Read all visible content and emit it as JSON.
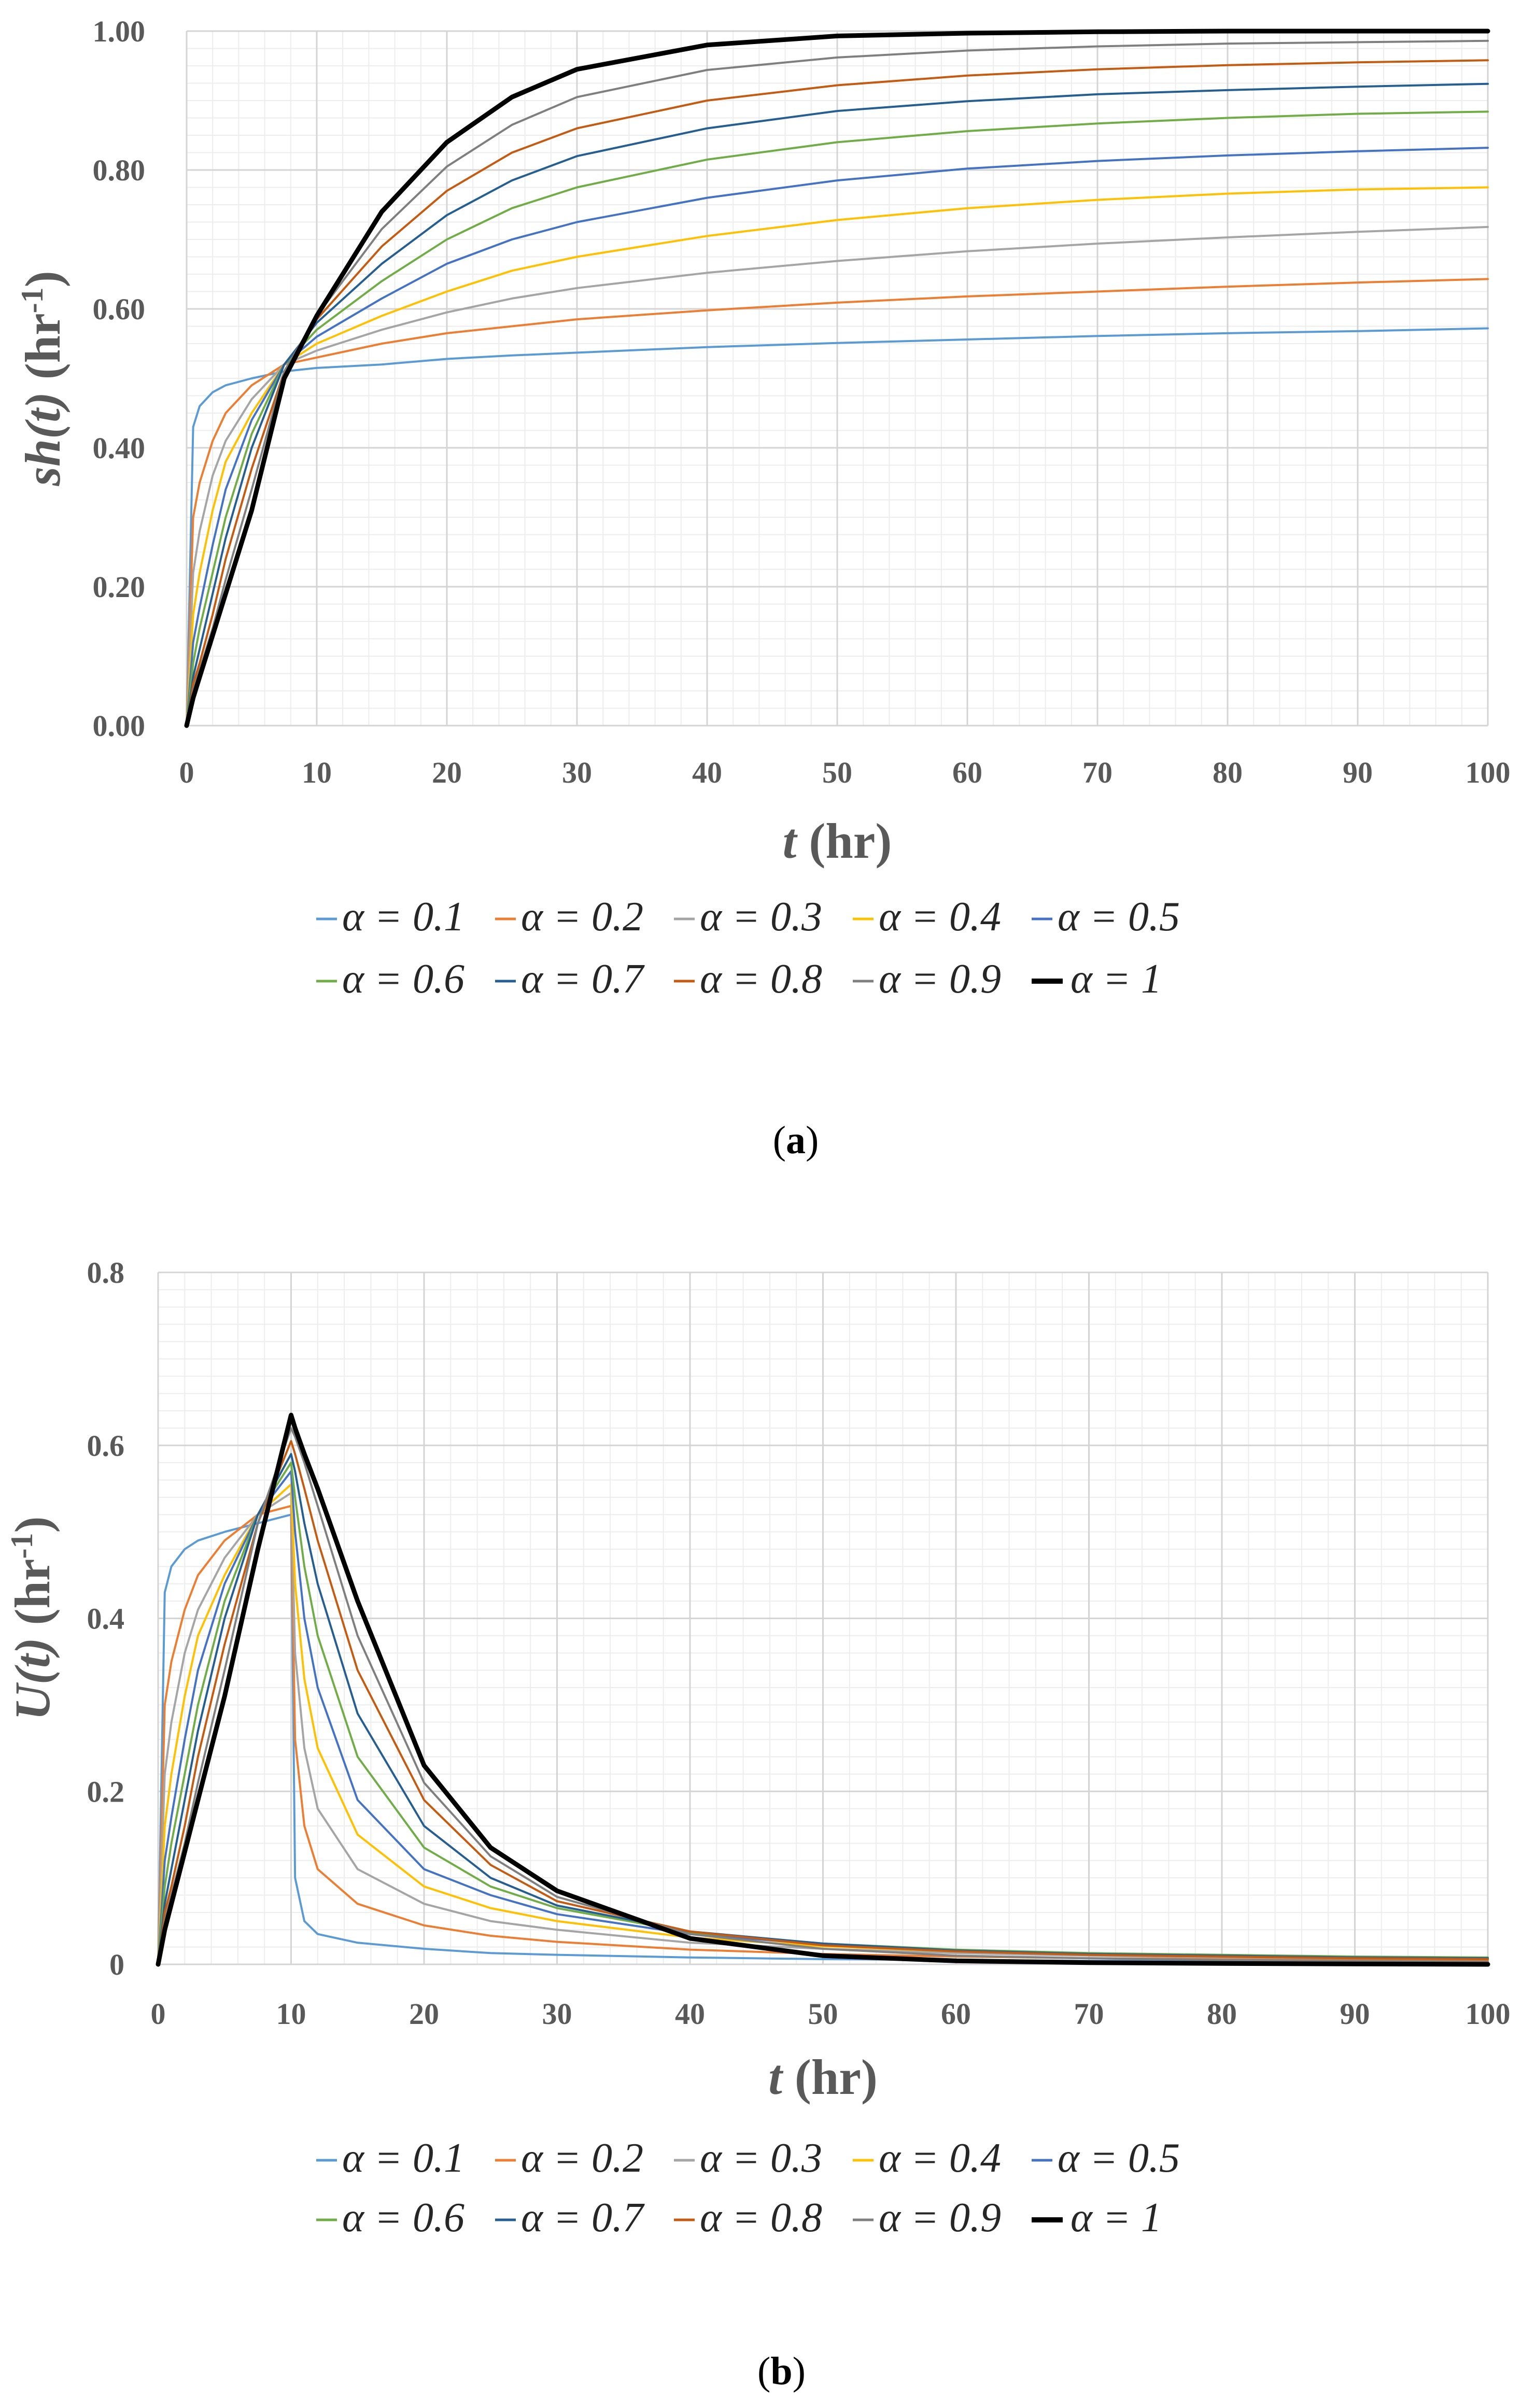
{
  "chart_data": [
    {
      "type": "line",
      "panel_label": "a",
      "xlabel_var": "t",
      "xlabel_unit": " (hr)",
      "ylabel_var": "sh(t)",
      "ylabel_unit": " (hr",
      "ylabel_sup": "-1",
      "ylabel_close": ")",
      "xlim": [
        0,
        100
      ],
      "ylim": [
        0,
        1
      ],
      "x_ticks": [
        0,
        10,
        20,
        30,
        40,
        50,
        60,
        70,
        80,
        90,
        100
      ],
      "y_ticks": [
        0,
        0.2,
        0.4,
        0.6,
        0.8,
        1.0
      ],
      "y_tick_labels": [
        "0.00",
        "0.20",
        "0.40",
        "0.60",
        "0.80",
        "1.00"
      ],
      "grid": true,
      "legend_position": "bottom",
      "x": [
        0,
        0.5,
        1,
        2,
        3,
        5,
        7.5,
        10,
        15,
        20,
        25,
        30,
        40,
        50,
        60,
        70,
        80,
        90,
        100
      ],
      "series": [
        {
          "name": "α = 0.1",
          "color": "#5B9BD5",
          "width": 4,
          "values": [
            0,
            0.43,
            0.46,
            0.48,
            0.49,
            0.5,
            0.51,
            0.515,
            0.52,
            0.528,
            0.533,
            0.537,
            0.545,
            0.551,
            0.556,
            0.561,
            0.565,
            0.568,
            0.572
          ]
        },
        {
          "name": "α = 0.2",
          "color": "#ED7D31",
          "width": 4,
          "values": [
            0,
            0.3,
            0.35,
            0.41,
            0.45,
            0.49,
            0.52,
            0.53,
            0.55,
            0.565,
            0.575,
            0.585,
            0.598,
            0.609,
            0.618,
            0.625,
            0.632,
            0.638,
            0.643
          ]
        },
        {
          "name": "α = 0.3",
          "color": "#A5A5A5",
          "width": 4,
          "values": [
            0,
            0.22,
            0.28,
            0.36,
            0.41,
            0.47,
            0.52,
            0.54,
            0.57,
            0.595,
            0.615,
            0.63,
            0.652,
            0.669,
            0.683,
            0.694,
            0.703,
            0.711,
            0.718
          ]
        },
        {
          "name": "α = 0.4",
          "color": "#FFC000",
          "width": 4,
          "values": [
            0,
            0.16,
            0.22,
            0.31,
            0.38,
            0.45,
            0.52,
            0.55,
            0.59,
            0.625,
            0.655,
            0.675,
            0.705,
            0.728,
            0.745,
            0.757,
            0.766,
            0.772,
            0.775
          ]
        },
        {
          "name": "α = 0.5",
          "color": "#4472C4",
          "width": 4,
          "values": [
            0,
            0.12,
            0.17,
            0.26,
            0.34,
            0.44,
            0.52,
            0.56,
            0.615,
            0.665,
            0.7,
            0.725,
            0.76,
            0.785,
            0.802,
            0.813,
            0.821,
            0.827,
            0.832
          ]
        },
        {
          "name": "α = 0.6",
          "color": "#70AD47",
          "width": 4,
          "values": [
            0,
            0.09,
            0.14,
            0.22,
            0.3,
            0.42,
            0.52,
            0.57,
            0.64,
            0.7,
            0.745,
            0.775,
            0.815,
            0.84,
            0.856,
            0.867,
            0.875,
            0.881,
            0.884
          ]
        },
        {
          "name": "α = 0.7",
          "color": "#255E91",
          "width": 4,
          "values": [
            0,
            0.07,
            0.11,
            0.19,
            0.27,
            0.4,
            0.52,
            0.58,
            0.665,
            0.735,
            0.785,
            0.82,
            0.86,
            0.885,
            0.899,
            0.909,
            0.915,
            0.92,
            0.924
          ]
        },
        {
          "name": "α = 0.8",
          "color": "#C55A11",
          "width": 4,
          "values": [
            0,
            0.06,
            0.09,
            0.16,
            0.24,
            0.37,
            0.51,
            0.585,
            0.69,
            0.77,
            0.825,
            0.86,
            0.9,
            0.922,
            0.936,
            0.945,
            0.951,
            0.955,
            0.958
          ]
        },
        {
          "name": "α = 0.9",
          "color": "#7F7F7F",
          "width": 4,
          "values": [
            0,
            0.05,
            0.08,
            0.14,
            0.21,
            0.34,
            0.51,
            0.59,
            0.715,
            0.805,
            0.865,
            0.905,
            0.944,
            0.962,
            0.972,
            0.978,
            0.982,
            0.984,
            0.986
          ]
        },
        {
          "name": "α = 1",
          "color": "#000000",
          "width": 9,
          "values": [
            0,
            0.04,
            0.07,
            0.13,
            0.19,
            0.31,
            0.5,
            0.59,
            0.74,
            0.84,
            0.905,
            0.945,
            0.98,
            0.993,
            0.997,
            0.999,
            1.0,
            1.0,
            1.0
          ]
        }
      ]
    },
    {
      "type": "line",
      "panel_label": "b",
      "xlabel_var": "t",
      "xlabel_unit": " (hr)",
      "ylabel_var": "U(t)",
      "ylabel_unit": " (hr",
      "ylabel_sup": "-1",
      "ylabel_close": ")",
      "xlim": [
        0,
        100
      ],
      "ylim": [
        0,
        0.8
      ],
      "x_ticks": [
        0,
        10,
        20,
        30,
        40,
        50,
        60,
        70,
        80,
        90,
        100
      ],
      "y_ticks": [
        0,
        0.2,
        0.4,
        0.6,
        0.8
      ],
      "y_tick_labels": [
        "0",
        "0.2",
        "0.4",
        "0.6",
        "0.8"
      ],
      "grid": true,
      "legend_position": "bottom",
      "x": [
        0,
        0.5,
        1,
        2,
        3,
        5,
        7.5,
        10,
        10.3,
        11,
        12,
        15,
        20,
        25,
        30,
        40,
        50,
        60,
        70,
        80,
        90,
        100
      ],
      "series": [
        {
          "name": "α = 0.1",
          "color": "#5B9BD5",
          "width": 4,
          "values": [
            0,
            0.43,
            0.46,
            0.48,
            0.49,
            0.5,
            0.51,
            0.52,
            0.1,
            0.05,
            0.035,
            0.025,
            0.018,
            0.013,
            0.011,
            0.008,
            0.006,
            0.005,
            0.004,
            0.004,
            0.003,
            0.003
          ]
        },
        {
          "name": "α = 0.2",
          "color": "#ED7D31",
          "width": 4,
          "values": [
            0,
            0.3,
            0.35,
            0.41,
            0.45,
            0.49,
            0.52,
            0.53,
            0.26,
            0.16,
            0.11,
            0.07,
            0.045,
            0.033,
            0.026,
            0.017,
            0.012,
            0.009,
            0.007,
            0.006,
            0.005,
            0.005
          ]
        },
        {
          "name": "α = 0.3",
          "color": "#A5A5A5",
          "width": 4,
          "values": [
            0,
            0.22,
            0.28,
            0.36,
            0.41,
            0.47,
            0.52,
            0.545,
            0.36,
            0.25,
            0.18,
            0.11,
            0.07,
            0.05,
            0.04,
            0.025,
            0.018,
            0.013,
            0.01,
            0.008,
            0.007,
            0.006
          ]
        },
        {
          "name": "α = 0.4",
          "color": "#FFC000",
          "width": 4,
          "values": [
            0,
            0.16,
            0.22,
            0.31,
            0.38,
            0.45,
            0.52,
            0.555,
            0.44,
            0.33,
            0.25,
            0.15,
            0.09,
            0.065,
            0.05,
            0.031,
            0.021,
            0.015,
            0.012,
            0.01,
            0.008,
            0.007
          ]
        },
        {
          "name": "α = 0.5",
          "color": "#4472C4",
          "width": 4,
          "values": [
            0,
            0.12,
            0.17,
            0.26,
            0.34,
            0.44,
            0.52,
            0.57,
            0.5,
            0.4,
            0.32,
            0.19,
            0.11,
            0.08,
            0.058,
            0.035,
            0.023,
            0.016,
            0.012,
            0.01,
            0.008,
            0.007
          ]
        },
        {
          "name": "α = 0.6",
          "color": "#70AD47",
          "width": 4,
          "values": [
            0,
            0.09,
            0.14,
            0.22,
            0.3,
            0.42,
            0.52,
            0.58,
            0.54,
            0.46,
            0.38,
            0.24,
            0.135,
            0.09,
            0.065,
            0.037,
            0.024,
            0.017,
            0.013,
            0.011,
            0.009,
            0.008
          ]
        },
        {
          "name": "α = 0.7",
          "color": "#255E91",
          "width": 4,
          "values": [
            0,
            0.07,
            0.11,
            0.19,
            0.27,
            0.4,
            0.52,
            0.59,
            0.57,
            0.51,
            0.44,
            0.29,
            0.16,
            0.1,
            0.068,
            0.038,
            0.024,
            0.016,
            0.012,
            0.01,
            0.008,
            0.007
          ]
        },
        {
          "name": "α = 0.8",
          "color": "#C55A11",
          "width": 4,
          "values": [
            0,
            0.06,
            0.09,
            0.16,
            0.24,
            0.37,
            0.51,
            0.605,
            0.59,
            0.55,
            0.49,
            0.34,
            0.19,
            0.115,
            0.073,
            0.038,
            0.022,
            0.015,
            0.011,
            0.009,
            0.007,
            0.006
          ]
        },
        {
          "name": "α = 0.9",
          "color": "#7F7F7F",
          "width": 4,
          "values": [
            0,
            0.05,
            0.08,
            0.14,
            0.21,
            0.34,
            0.51,
            0.62,
            0.61,
            0.58,
            0.53,
            0.38,
            0.21,
            0.125,
            0.078,
            0.035,
            0.018,
            0.01,
            0.007,
            0.005,
            0.004,
            0.003
          ]
        },
        {
          "name": "α = 1",
          "color": "#000000",
          "width": 9,
          "values": [
            0,
            0.04,
            0.07,
            0.13,
            0.19,
            0.31,
            0.48,
            0.635,
            0.62,
            0.59,
            0.55,
            0.42,
            0.23,
            0.135,
            0.085,
            0.03,
            0.01,
            0.004,
            0.002,
            0.001,
            0.0005,
            0.0
          ]
        }
      ]
    }
  ]
}
